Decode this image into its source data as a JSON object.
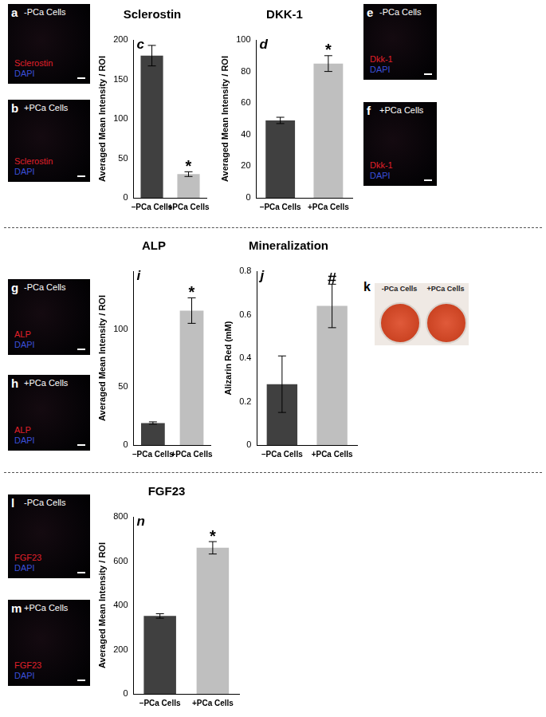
{
  "chart_data": [
    {
      "letter": "c",
      "type": "bar",
      "title": "Sclerostin",
      "y_label": "Averaged Mean Intensity / ROI",
      "categories": [
        "–PCa Cells",
        "+PCa Cells"
      ],
      "values": [
        180,
        30
      ],
      "errors": [
        13,
        3
      ],
      "colors": [
        "#404040",
        "#bfbfbf"
      ],
      "ylim": [
        0,
        200
      ],
      "yticks": [
        0,
        50,
        100,
        150,
        200
      ],
      "grid": false,
      "annotations": [
        {
          "category": "+PCa Cells",
          "text": "*"
        }
      ]
    },
    {
      "letter": "d",
      "type": "bar",
      "title": "DKK-1",
      "y_label": "Averaged Mean Intensity / ROI",
      "categories": [
        "–PCa Cells",
        "+PCa Cells"
      ],
      "values": [
        49,
        85
      ],
      "errors": [
        2,
        5
      ],
      "colors": [
        "#404040",
        "#bfbfbf"
      ],
      "ylim": [
        0,
        100
      ],
      "yticks": [
        0,
        20,
        40,
        60,
        80,
        100
      ],
      "grid": false,
      "annotations": [
        {
          "category": "+PCa Cells",
          "text": "*"
        }
      ]
    },
    {
      "letter": "i",
      "type": "bar",
      "title": "ALP",
      "y_label": "Averaged Mean Intensity / ROI",
      "categories": [
        "–PCa Cells",
        "+PCa Cells"
      ],
      "values": [
        19,
        116
      ],
      "errors": [
        1,
        11
      ],
      "colors": [
        "#404040",
        "#bfbfbf"
      ],
      "ylim": [
        0,
        150
      ],
      "yticks": [
        0,
        50,
        100
      ],
      "grid": false,
      "annotations": [
        {
          "category": "+PCa Cells",
          "text": "*"
        }
      ]
    },
    {
      "letter": "j",
      "type": "bar",
      "title": "Mineralization",
      "y_label": "Alizarin Red (mM)",
      "categories": [
        "–PCa Cells",
        "+PCa Cells"
      ],
      "values": [
        0.28,
        0.64
      ],
      "errors": [
        0.13,
        0.1
      ],
      "colors": [
        "#404040",
        "#bfbfbf"
      ],
      "ylim": [
        0,
        0.8
      ],
      "yticks": [
        0,
        0.2,
        0.4,
        0.6,
        0.8
      ],
      "grid": false,
      "annotations": [
        {
          "category": "+PCa Cells",
          "text": "#"
        }
      ]
    },
    {
      "letter": "n",
      "type": "bar",
      "title": "FGF23",
      "y_label": "Averaged Mean Intensity / ROI",
      "categories": [
        "–PCa Cells",
        "+PCa Cells"
      ],
      "values": [
        352,
        660
      ],
      "errors": [
        10,
        28
      ],
      "colors": [
        "#404040",
        "#bfbfbf"
      ],
      "ylim": [
        0,
        800
      ],
      "yticks": [
        0,
        200,
        400,
        600,
        800
      ],
      "grid": false,
      "annotations": [
        {
          "category": "+PCa Cells",
          "text": "*"
        }
      ]
    }
  ],
  "image_panels": [
    {
      "letter": "a",
      "condition": "-PCa Cells",
      "stain": "Sclerostin",
      "counterstain": "DAPI"
    },
    {
      "letter": "b",
      "condition": "+PCa Cells",
      "stain": "Sclerostin",
      "counterstain": "DAPI"
    },
    {
      "letter": "e",
      "condition": "-PCa Cells",
      "stain": "Dkk-1",
      "counterstain": "DAPI"
    },
    {
      "letter": "f",
      "condition": "+PCa Cells",
      "stain": "Dkk-1",
      "counterstain": "DAPI"
    },
    {
      "letter": "g",
      "condition": "-PCa Cells",
      "stain": "ALP",
      "counterstain": "DAPI"
    },
    {
      "letter": "h",
      "condition": "+PCa Cells",
      "stain": "ALP",
      "counterstain": "DAPI"
    },
    {
      "letter": "l",
      "condition": "-PCa  Cells",
      "stain": "FGF23",
      "counterstain": "DAPI"
    },
    {
      "letter": "m",
      "condition": "+PCa Cells",
      "stain": "FGF23",
      "counterstain": "DAPI"
    }
  ],
  "photo_panel": {
    "letter": "k",
    "labels": [
      "-PCa Cells",
      "+PCa Cells"
    ]
  }
}
